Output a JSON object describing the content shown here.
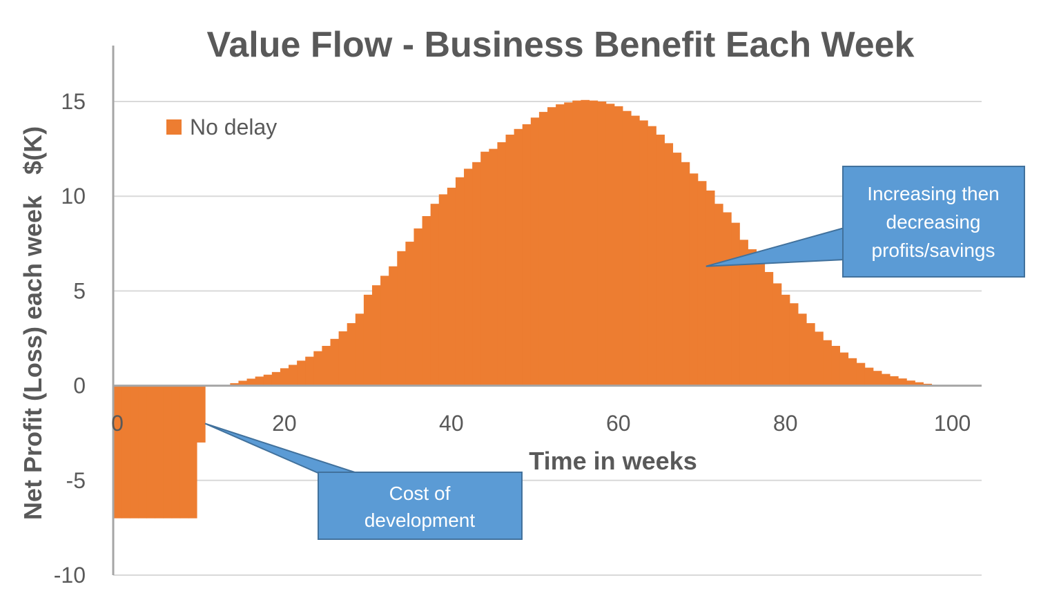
{
  "chart_data": {
    "type": "bar",
    "title": "Value Flow - Business Benefit Each Week",
    "xlabel": "Time in weeks",
    "ylabel": "Net Profit (Loss) each week   $(K)",
    "xlim": [
      0,
      104
    ],
    "ylim": [
      -10,
      15
    ],
    "x_ticks": [
      0,
      20,
      40,
      60,
      80,
      100
    ],
    "y_ticks": [
      -10,
      -5,
      0,
      5,
      10,
      15
    ],
    "grid": true,
    "legend_position": "top-left",
    "series": [
      {
        "name": "No delay",
        "color": "#ED7D31",
        "values": [
          -7,
          -7,
          -7,
          -7,
          -7,
          -7,
          -7,
          -7,
          -7,
          -7,
          -3,
          0,
          0,
          0.02,
          0.13,
          0.26,
          0.37,
          0.48,
          0.58,
          0.72,
          0.92,
          1.1,
          1.32,
          1.53,
          1.82,
          2.1,
          2.47,
          2.87,
          3.3,
          3.8,
          4.8,
          5.3,
          5.8,
          6.3,
          7.1,
          7.6,
          8.3,
          8.95,
          9.6,
          10.1,
          10.45,
          11.0,
          11.45,
          11.8,
          12.35,
          12.5,
          12.85,
          13.25,
          13.55,
          13.8,
          14.15,
          14.45,
          14.7,
          14.85,
          14.95,
          15.05,
          15.08,
          15.05,
          15.0,
          14.88,
          14.75,
          14.5,
          14.25,
          14.0,
          13.7,
          13.25,
          12.8,
          12.3,
          11.8,
          11.2,
          10.8,
          10.3,
          9.6,
          9.15,
          8.6,
          7.7,
          7.2,
          6.5,
          6.0,
          5.4,
          4.8,
          4.35,
          3.8,
          3.3,
          2.85,
          2.4,
          2.1,
          1.75,
          1.45,
          1.2,
          0.95,
          0.78,
          0.62,
          0.5,
          0.38,
          0.27,
          0.18,
          0.1,
          0.04
        ]
      }
    ],
    "annotations": [
      {
        "text_lines": [
          "Increasing then",
          "decreasing",
          "profits/savings"
        ],
        "pointer_x": 71,
        "pointer_y": 6.3
      },
      {
        "text_lines": [
          "Cost of",
          "development"
        ],
        "pointer_x": 11,
        "pointer_y": -2
      }
    ]
  }
}
